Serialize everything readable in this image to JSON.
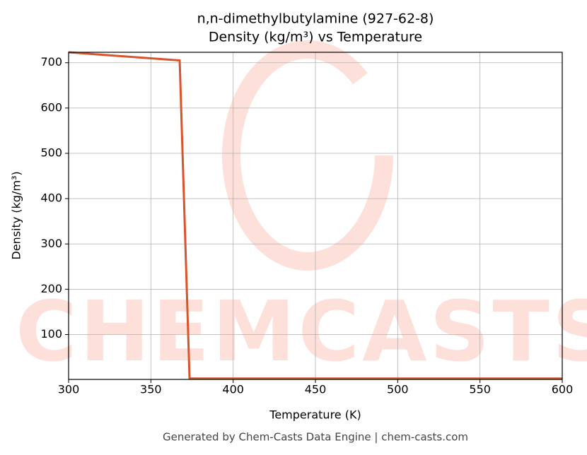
{
  "chart_data": {
    "type": "line",
    "title": [
      "n,n-dimethylbutylamine (927-62-8)",
      "Density (kg/m³) vs Temperature"
    ],
    "x_label": "Temperature (K)",
    "y_label": "Density (kg/m³)",
    "footer": "Generated by Chem-Casts Data Engine | chem-casts.com",
    "watermark": "CHEMCASTS",
    "x": [
      300,
      367.5,
      373.5,
      600
    ],
    "series": [
      {
        "name": "Density",
        "color": "#d9542b",
        "values": [
          723,
          705,
          3,
          3
        ]
      }
    ],
    "xlim": [
      300,
      600
    ],
    "ylim": [
      1,
      723
    ],
    "xticks": [
      300,
      350,
      400,
      450,
      500,
      550,
      600
    ],
    "yticks": [
      100,
      200,
      300,
      400,
      500,
      600,
      700
    ],
    "grid": true
  }
}
